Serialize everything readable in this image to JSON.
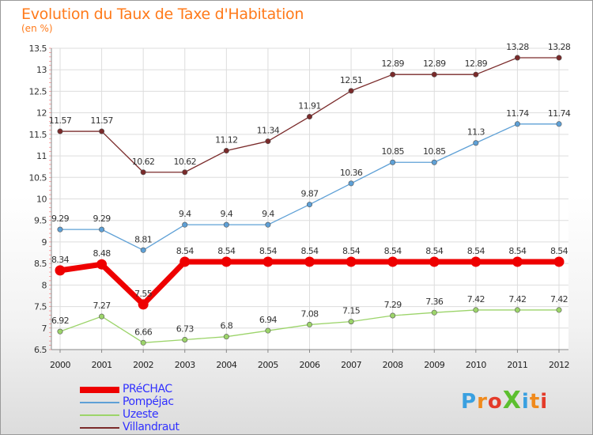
{
  "title": "Evolution du Taux de Taxe d'Habitation",
  "unit_label": "(en %)",
  "logo_text": "ProXiti",
  "chart_data": {
    "type": "line",
    "title": "Evolution du Taux de Taxe d'Habitation",
    "ylabel": "(en %)",
    "xlabel": "",
    "x": [
      "2000",
      "2001",
      "2002",
      "2003",
      "2004",
      "2005",
      "2006",
      "2007",
      "2008",
      "2009",
      "2010",
      "2011",
      "2012"
    ],
    "ylim": [
      6.5,
      13.5
    ],
    "yticks": [
      "6.5",
      "7",
      "7.5",
      "8",
      "8.5",
      "9",
      "9.5",
      "10",
      "10.5",
      "11",
      "11.5",
      "12",
      "12.5",
      "13",
      "13.5"
    ],
    "grid": true,
    "legend": "bottom-left",
    "series": [
      {
        "name": "PRéCHAC",
        "color": "#ee0000",
        "values": [
          8.34,
          8.48,
          7.55,
          8.54,
          8.54,
          8.54,
          8.54,
          8.54,
          8.54,
          8.54,
          8.54,
          8.54,
          8.54
        ],
        "labels": [
          "8.34",
          "8.48",
          "7.55",
          "8.54",
          "8.54",
          "8.54",
          "8.54",
          "8.54",
          "8.54",
          "8.54",
          "8.54",
          "8.54",
          "8.54"
        ]
      },
      {
        "name": "Pompéjac",
        "color": "#5ea0d6",
        "values": [
          9.29,
          9.29,
          8.81,
          9.4,
          9.4,
          9.4,
          9.87,
          10.36,
          10.85,
          10.85,
          11.3,
          11.74,
          11.74
        ],
        "labels": [
          "9.29",
          "9.29",
          "8.81",
          "9.4",
          "9.4",
          "9.4",
          "9.87",
          "10.36",
          "10.85",
          "10.85",
          "11.3",
          "11.74",
          "11.74"
        ]
      },
      {
        "name": "Uzeste",
        "color": "#9cd46a",
        "values": [
          6.92,
          7.27,
          6.66,
          6.73,
          6.8,
          6.94,
          7.08,
          7.15,
          7.29,
          7.36,
          7.42,
          7.42,
          7.42
        ],
        "labels": [
          "6.92",
          "7.27",
          "6.66",
          "6.73",
          "6.8",
          "6.94",
          "7.08",
          "7.15",
          "7.29",
          "7.36",
          "7.42",
          "7.42",
          "7.42"
        ]
      },
      {
        "name": "Villandraut",
        "color": "#7a2a2a",
        "values": [
          11.57,
          11.57,
          10.62,
          10.62,
          11.12,
          11.34,
          11.91,
          12.51,
          12.89,
          12.89,
          12.89,
          13.28,
          13.28
        ],
        "labels": [
          "11.57",
          "11.57",
          "10.62",
          "10.62",
          "11.12",
          "11.34",
          "11.91",
          "12.51",
          "12.89",
          "12.89",
          "12.89",
          "13.28",
          "13.28"
        ]
      }
    ]
  }
}
